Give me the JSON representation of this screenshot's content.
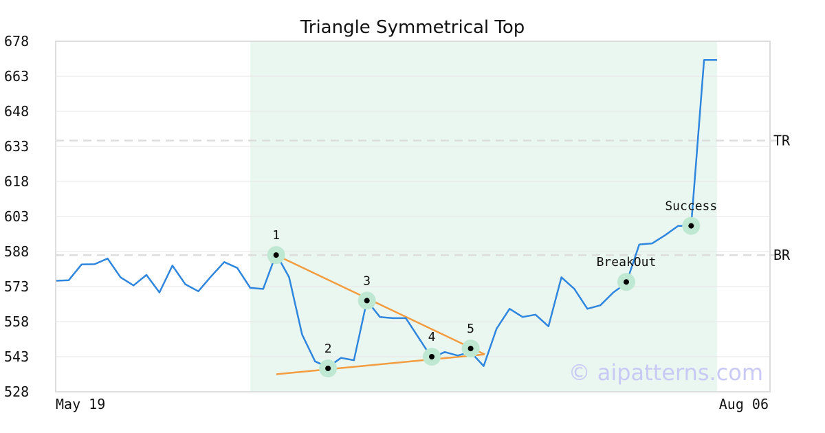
{
  "chart_data": {
    "type": "line",
    "title": "Triangle Symmetrical Top",
    "xlabel": "",
    "ylabel": "",
    "x_tick_labels": [
      "May 19",
      "Aug 06"
    ],
    "y_ticks": [
      528,
      543,
      558,
      573,
      588,
      603,
      618,
      633,
      648,
      663,
      678
    ],
    "ylim": [
      528,
      678
    ],
    "grid": true,
    "colors": {
      "line": "#2e86de",
      "trend": "#f39c3f",
      "highlight": "#eaf6f0",
      "marker_ring": "#bfe8d2",
      "marker_dot": "#000000",
      "ref_line": "#dddddd",
      "frame": "#dddddd"
    },
    "series": [
      {
        "values": [
          575.5,
          575.7,
          582.5,
          582.6,
          585.0,
          577.0,
          573.5,
          578.0,
          570.5,
          582.0,
          574.0,
          571.0,
          577.5,
          583.5,
          581.0,
          572.5,
          572.0,
          587.0,
          577.0,
          552.5,
          541.0,
          538.5,
          542.5,
          541.5,
          567.0,
          560.0,
          559.5,
          559.5,
          551.0,
          542.5,
          545.0,
          543.5,
          545.0,
          539.0,
          555.0,
          563.5,
          560.0,
          561.0,
          556.0,
          577.0,
          572.0,
          563.5,
          565.0,
          570.5,
          574.5,
          591.0,
          591.5,
          595.0,
          599.0,
          599.0,
          670.0,
          670.0
        ]
      }
    ],
    "highlight_range": {
      "start_index": 15,
      "end_index": 51
    },
    "trend_lines": [
      {
        "from": {
          "index": 17,
          "value": 586.5
        },
        "to": {
          "index": 33,
          "value": 544.0
        }
      },
      {
        "from": {
          "index": 17,
          "value": 535.5
        },
        "to": {
          "index": 33,
          "value": 544.0
        }
      }
    ],
    "reference_lines": [
      {
        "label": "TR",
        "value": 635.5
      },
      {
        "label": "BR",
        "value": 586.5
      }
    ],
    "points": [
      {
        "label": "1",
        "index": 17,
        "value": 586.5
      },
      {
        "label": "2",
        "index": 21,
        "value": 538.0
      },
      {
        "label": "3",
        "index": 24,
        "value": 567.0
      },
      {
        "label": "4",
        "index": 29,
        "value": 543.0
      },
      {
        "label": "5",
        "index": 32,
        "value": 546.5
      },
      {
        "label": "BreakOut",
        "index": 44,
        "value": 575.0
      },
      {
        "label": "Success",
        "index": 49,
        "value": 599.0
      }
    ]
  },
  "watermark": "© aipatterns.com"
}
